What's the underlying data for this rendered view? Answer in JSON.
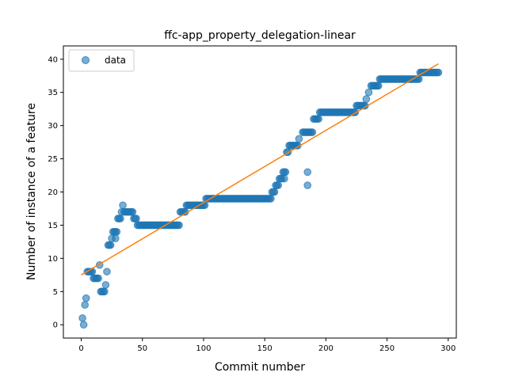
{
  "chart_data": {
    "type": "scatter",
    "title": "ffc-app_property_delegation-linear",
    "xlabel": "Commit number",
    "ylabel": "Number of instance of a feature",
    "xlim": [
      -14.6,
      306.6
    ],
    "ylim": [
      -2.0,
      42.0
    ],
    "xticks": [
      0,
      50,
      100,
      150,
      200,
      250,
      300
    ],
    "yticks": [
      0,
      5,
      10,
      15,
      20,
      25,
      30,
      35,
      40
    ],
    "legend": {
      "position": "top-left",
      "entries": [
        "data"
      ]
    },
    "grid": false,
    "colors": {
      "points": "#1f77b4",
      "fit": "#ff7f0e"
    },
    "fit_line": {
      "x": [
        0,
        292
      ],
      "y": [
        7.5,
        39.3
      ]
    },
    "series": [
      {
        "name": "data",
        "marker": "circle",
        "anchors": [
          [
            1,
            1
          ],
          [
            2,
            0
          ],
          [
            3,
            3
          ],
          [
            4,
            4
          ],
          [
            5,
            8
          ],
          [
            8,
            8
          ],
          [
            9,
            8
          ],
          [
            10,
            7
          ],
          [
            14,
            7
          ],
          [
            15,
            9
          ],
          [
            16,
            5
          ],
          [
            19,
            5
          ],
          [
            20,
            6
          ],
          [
            21,
            8
          ],
          [
            22,
            12
          ],
          [
            24,
            12
          ],
          [
            25,
            13
          ],
          [
            26,
            14
          ],
          [
            29,
            14
          ],
          [
            28,
            13
          ],
          [
            30,
            16
          ],
          [
            32,
            16
          ],
          [
            33,
            17
          ],
          [
            34,
            18
          ],
          [
            35,
            17
          ],
          [
            42,
            17
          ],
          [
            43,
            16
          ],
          [
            45,
            16
          ],
          [
            46,
            15
          ],
          [
            80,
            15
          ],
          [
            81,
            17
          ],
          [
            84,
            17
          ],
          [
            85,
            17
          ],
          [
            86,
            18
          ],
          [
            101,
            18
          ],
          [
            102,
            19
          ],
          [
            155,
            19
          ],
          [
            156,
            20
          ],
          [
            158,
            20
          ],
          [
            159,
            21
          ],
          [
            161,
            21
          ],
          [
            162,
            22
          ],
          [
            164,
            22
          ],
          [
            165,
            23
          ],
          [
            167,
            23
          ],
          [
            166,
            22
          ],
          [
            168,
            26
          ],
          [
            169,
            26
          ],
          [
            170,
            27
          ],
          [
            177,
            27
          ],
          [
            178,
            28
          ],
          [
            181,
            29
          ],
          [
            189,
            29
          ],
          [
            190,
            31
          ],
          [
            194,
            31
          ],
          [
            195,
            32
          ],
          [
            224,
            32
          ],
          [
            225,
            33
          ],
          [
            232,
            33
          ],
          [
            233,
            34
          ],
          [
            235,
            35
          ],
          [
            237,
            36
          ],
          [
            243,
            36
          ],
          [
            244,
            37
          ],
          [
            276,
            37
          ],
          [
            277,
            38
          ],
          [
            292,
            38
          ],
          [
            185,
            21
          ],
          [
            185,
            23
          ]
        ]
      }
    ]
  }
}
